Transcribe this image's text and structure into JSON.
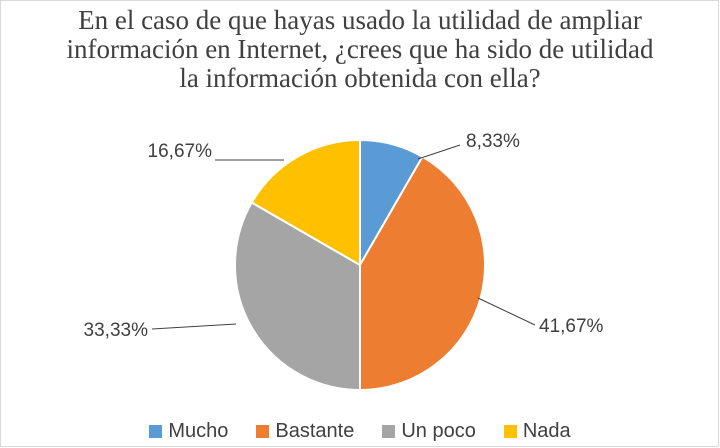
{
  "chart_data": {
    "type": "pie",
    "title": "En el caso de que hayas usado la utilidad de ampliar información en Internet, ¿crees que ha sido de utilidad la información obtenida con ella?",
    "categories": [
      "Mucho",
      "Bastante",
      "Un poco",
      "Nada"
    ],
    "values": [
      8.33,
      41.67,
      33.33,
      16.67
    ],
    "labels": [
      "8,33%",
      "41,67%",
      "33,33%",
      "16,67%"
    ],
    "colors": [
      "#5b9bd5",
      "#ed7d31",
      "#a5a5a5",
      "#ffc000"
    ],
    "legend": "bottom",
    "start_angle": "12 o'clock",
    "direction": "clockwise"
  }
}
